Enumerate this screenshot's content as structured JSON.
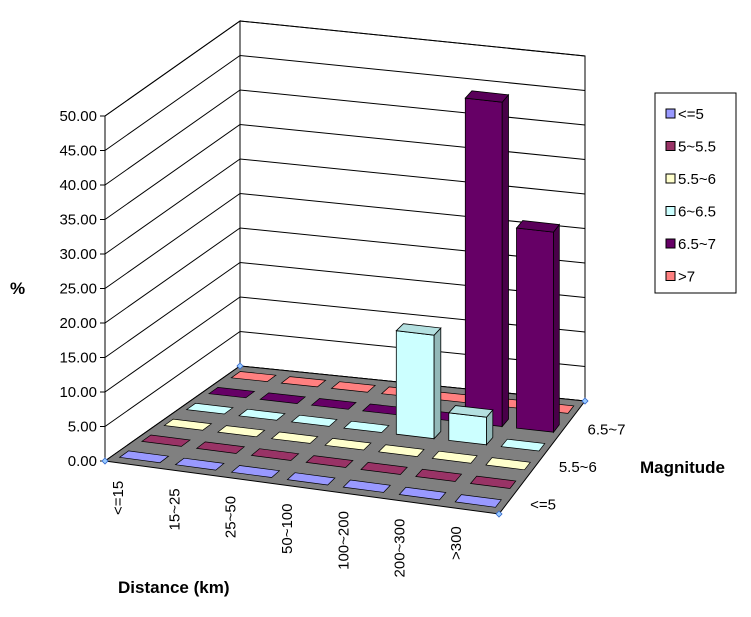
{
  "chart_data": {
    "type": "bar",
    "subtype": "3d-column",
    "title": "",
    "xlabel": "Distance (km)",
    "ylabel": "%",
    "zlabel": "Magnitude",
    "categories": [
      "<=15",
      "15~25",
      "25~50",
      "50~100",
      "100~200",
      "200~300",
      ">300"
    ],
    "depth_tick_labels": [
      "<=5",
      "5.5~6",
      "6.5~7"
    ],
    "y_ticks": [
      "0.00",
      "5.00",
      "10.00",
      "15.00",
      "20.00",
      "25.00",
      "30.00",
      "35.00",
      "40.00",
      "45.00",
      "50.00"
    ],
    "ylim": [
      0,
      50
    ],
    "grid": true,
    "legend_position": "right",
    "series": [
      {
        "name": "<=5",
        "color": "#9999ff",
        "values": [
          0,
          0,
          0,
          0,
          0,
          0,
          0
        ]
      },
      {
        "name": "5~5.5",
        "color": "#993366",
        "values": [
          0,
          0,
          0,
          0,
          0,
          0,
          0
        ]
      },
      {
        "name": "5.5~6",
        "color": "#ffffcc",
        "values": [
          0,
          0,
          0,
          0,
          0.3,
          0.3,
          0
        ]
      },
      {
        "name": "6~6.5",
        "color": "#ccffff",
        "values": [
          0,
          0,
          0,
          0,
          15,
          4,
          0
        ]
      },
      {
        "name": "6.5~7",
        "color": "#660066",
        "values": [
          0,
          0,
          0,
          0,
          0,
          47,
          29
        ]
      },
      {
        "name": ">7",
        "color": "#ff8080",
        "values": [
          0,
          0,
          0,
          0,
          0,
          0,
          0
        ]
      }
    ]
  }
}
